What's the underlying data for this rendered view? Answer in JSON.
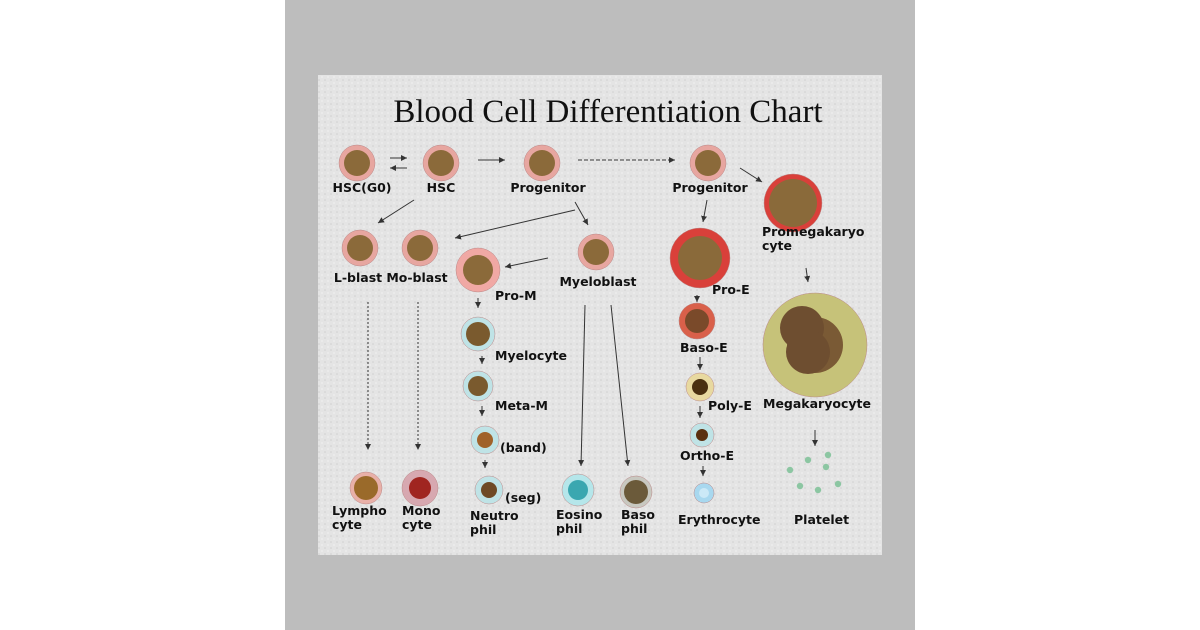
{
  "title": "Blood Cell Differentiation Chart",
  "nodes": [
    {
      "label": [
        "HSC(G0)"
      ]
    },
    {
      "label": [
        "HSC"
      ]
    },
    {
      "label": [
        "Progenitor"
      ]
    },
    {
      "label": [
        "Progenitor"
      ]
    },
    {
      "label": [
        "Promegakaryo",
        "cyte"
      ]
    },
    {
      "label": [
        "L-blast"
      ]
    },
    {
      "label": [
        "Mo-blast"
      ]
    },
    {
      "label": [
        "Myeloblast"
      ]
    },
    {
      "label": [
        "Pro-M"
      ]
    },
    {
      "label": [
        "Myelocyte"
      ]
    },
    {
      "label": [
        "Meta-M"
      ]
    },
    {
      "label": [
        "(band)"
      ]
    },
    {
      "label": [
        "(seg)"
      ]
    },
    {
      "label": [
        "Neutro",
        "phil"
      ]
    },
    {
      "label": [
        "Pro-E"
      ]
    },
    {
      "label": [
        "Baso-E"
      ]
    },
    {
      "label": [
        "Poly-E"
      ]
    },
    {
      "label": [
        "Ortho-E"
      ]
    },
    {
      "label": [
        "Megakaryocyte"
      ]
    },
    {
      "label": [
        "Lympho",
        "cyte"
      ]
    },
    {
      "label": [
        "Mono",
        "cyte"
      ]
    },
    {
      "label": [
        "Eosino",
        "phil"
      ]
    },
    {
      "label": [
        "Baso",
        "phil"
      ]
    },
    {
      "label": [
        "Erythrocyte"
      ]
    },
    {
      "label": [
        "Platelet"
      ]
    }
  ]
}
